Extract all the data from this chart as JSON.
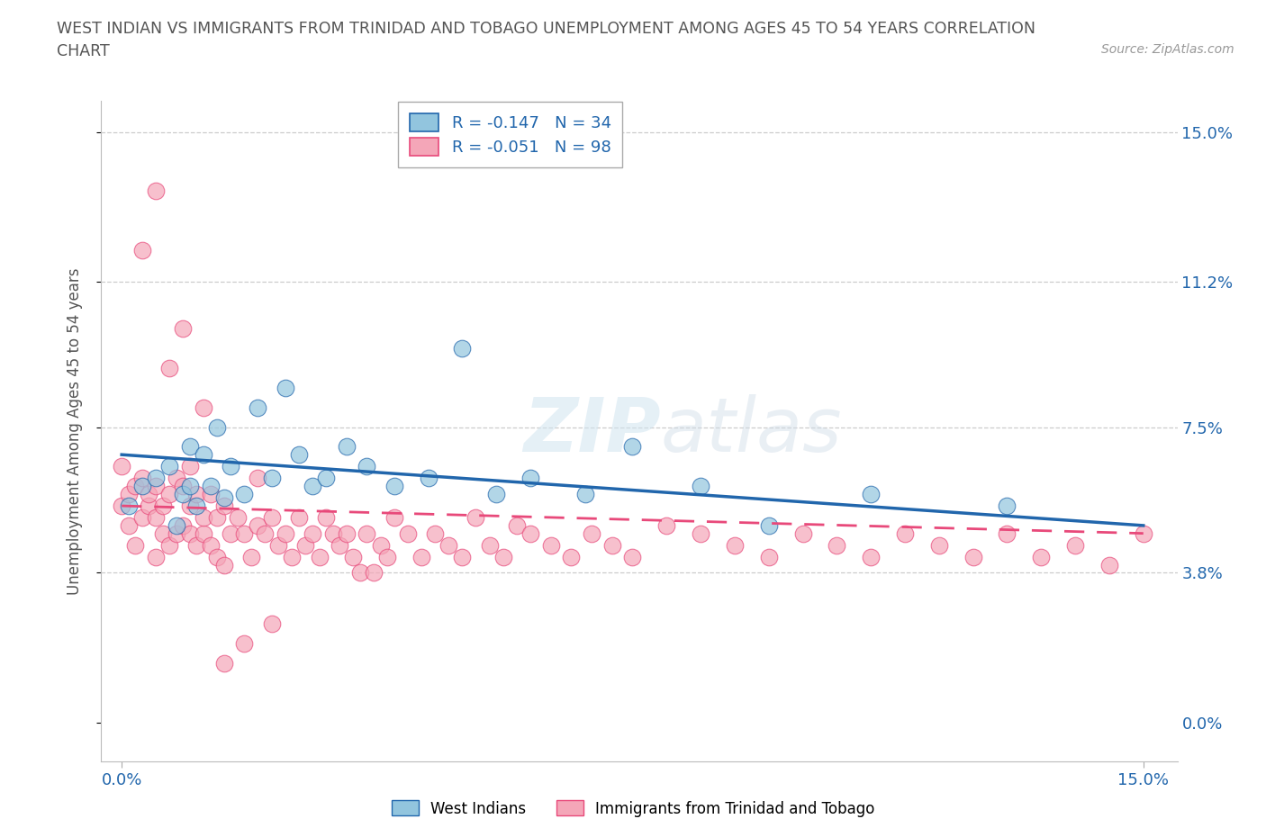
{
  "title_line1": "WEST INDIAN VS IMMIGRANTS FROM TRINIDAD AND TOBAGO UNEMPLOYMENT AMONG AGES 45 TO 54 YEARS CORRELATION",
  "title_line2": "CHART",
  "source_text": "Source: ZipAtlas.com",
  "ylabel": "Unemployment Among Ages 45 to 54 years",
  "ytick_vals": [
    0.0,
    0.038,
    0.075,
    0.112,
    0.15
  ],
  "ytick_labels": [
    "0.0%",
    "3.8%",
    "7.5%",
    "11.2%",
    "15.0%"
  ],
  "xtick_vals": [
    0.0,
    0.15
  ],
  "xtick_labels": [
    "0.0%",
    "15.0%"
  ],
  "legend_text1": "R = -0.147   N = 34",
  "legend_text2": "R = -0.051   N = 98",
  "color_blue": "#92c5de",
  "color_pink": "#f4a6b8",
  "color_blue_line": "#2166ac",
  "color_pink_line": "#e8497a",
  "label_west_indians": "West Indians",
  "label_trinidad": "Immigrants from Trinidad and Tobago",
  "wi_x": [
    0.001,
    0.003,
    0.005,
    0.007,
    0.008,
    0.009,
    0.01,
    0.01,
    0.011,
    0.012,
    0.013,
    0.014,
    0.015,
    0.016,
    0.018,
    0.02,
    0.022,
    0.024,
    0.026,
    0.028,
    0.03,
    0.033,
    0.036,
    0.04,
    0.045,
    0.05,
    0.055,
    0.06,
    0.068,
    0.075,
    0.085,
    0.095,
    0.11,
    0.13
  ],
  "wi_y": [
    0.055,
    0.06,
    0.062,
    0.065,
    0.05,
    0.058,
    0.06,
    0.07,
    0.055,
    0.068,
    0.06,
    0.075,
    0.057,
    0.065,
    0.058,
    0.08,
    0.062,
    0.085,
    0.068,
    0.06,
    0.062,
    0.07,
    0.065,
    0.06,
    0.062,
    0.095,
    0.058,
    0.062,
    0.058,
    0.07,
    0.06,
    0.05,
    0.058,
    0.055
  ],
  "tt_x": [
    0.0,
    0.0,
    0.001,
    0.001,
    0.002,
    0.002,
    0.003,
    0.003,
    0.004,
    0.004,
    0.005,
    0.005,
    0.005,
    0.006,
    0.006,
    0.007,
    0.007,
    0.008,
    0.008,
    0.009,
    0.009,
    0.01,
    0.01,
    0.01,
    0.011,
    0.011,
    0.012,
    0.012,
    0.013,
    0.013,
    0.014,
    0.014,
    0.015,
    0.015,
    0.016,
    0.017,
    0.018,
    0.019,
    0.02,
    0.02,
    0.021,
    0.022,
    0.023,
    0.024,
    0.025,
    0.026,
    0.027,
    0.028,
    0.029,
    0.03,
    0.031,
    0.032,
    0.033,
    0.034,
    0.035,
    0.036,
    0.037,
    0.038,
    0.039,
    0.04,
    0.042,
    0.044,
    0.046,
    0.048,
    0.05,
    0.052,
    0.054,
    0.056,
    0.058,
    0.06,
    0.063,
    0.066,
    0.069,
    0.072,
    0.075,
    0.08,
    0.085,
    0.09,
    0.095,
    0.1,
    0.105,
    0.11,
    0.115,
    0.12,
    0.125,
    0.13,
    0.135,
    0.14,
    0.145,
    0.15,
    0.003,
    0.005,
    0.007,
    0.009,
    0.012,
    0.015,
    0.018,
    0.022
  ],
  "tt_y": [
    0.055,
    0.065,
    0.05,
    0.058,
    0.045,
    0.06,
    0.052,
    0.062,
    0.055,
    0.058,
    0.042,
    0.052,
    0.06,
    0.048,
    0.055,
    0.045,
    0.058,
    0.048,
    0.062,
    0.05,
    0.06,
    0.048,
    0.055,
    0.065,
    0.045,
    0.058,
    0.048,
    0.052,
    0.045,
    0.058,
    0.042,
    0.052,
    0.04,
    0.055,
    0.048,
    0.052,
    0.048,
    0.042,
    0.05,
    0.062,
    0.048,
    0.052,
    0.045,
    0.048,
    0.042,
    0.052,
    0.045,
    0.048,
    0.042,
    0.052,
    0.048,
    0.045,
    0.048,
    0.042,
    0.038,
    0.048,
    0.038,
    0.045,
    0.042,
    0.052,
    0.048,
    0.042,
    0.048,
    0.045,
    0.042,
    0.052,
    0.045,
    0.042,
    0.05,
    0.048,
    0.045,
    0.042,
    0.048,
    0.045,
    0.042,
    0.05,
    0.048,
    0.045,
    0.042,
    0.048,
    0.045,
    0.042,
    0.048,
    0.045,
    0.042,
    0.048,
    0.042,
    0.045,
    0.04,
    0.048,
    0.12,
    0.135,
    0.09,
    0.1,
    0.08,
    0.015,
    0.02,
    0.025
  ],
  "wi_line_x": [
    0.0,
    0.15
  ],
  "wi_line_y": [
    0.068,
    0.05
  ],
  "tt_line_x": [
    0.0,
    0.15
  ],
  "tt_line_y": [
    0.055,
    0.048
  ]
}
